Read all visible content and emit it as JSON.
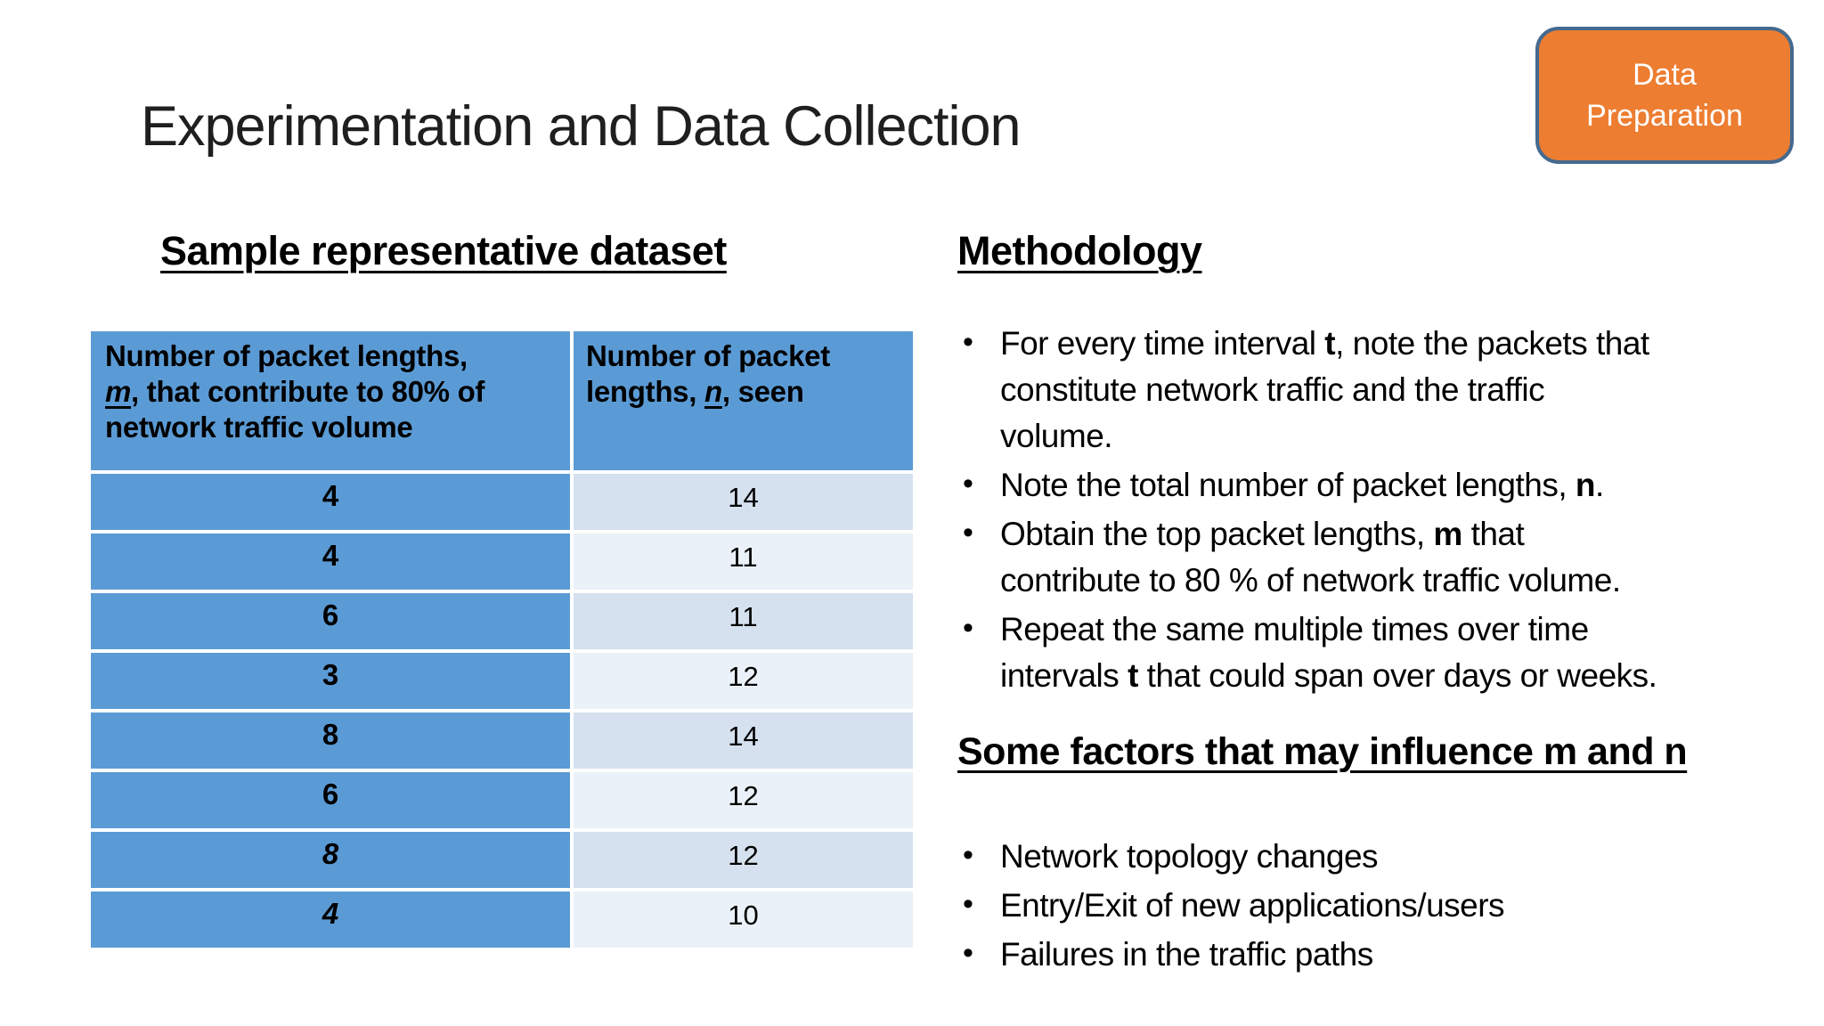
{
  "colors": {
    "accent-blue": "#5B9BD5",
    "band-dark": "#D6E1EF",
    "band-light": "#EBF1F8",
    "badge-bg": "#ED7D31",
    "badge-border": "#456A8F",
    "text": "#000000",
    "title-text": "#1F1F1F"
  },
  "title": "Experimentation and Data Collection",
  "badge": {
    "text": "Data\nPreparation"
  },
  "dataset": {
    "heading": "Sample representative dataset",
    "table": {
      "header_m_segments": [
        {
          "t": "Number of packet lengths,\n"
        },
        {
          "t": "m",
          "i": true,
          "u": true
        },
        {
          "t": ", that contribute to 80% of\nnetwork traffic volume"
        }
      ],
      "header_n_segments": [
        {
          "t": "Number of packet\nlengths, "
        },
        {
          "t": "n",
          "i": true,
          "u": true
        },
        {
          "t": ", seen"
        }
      ],
      "rows": [
        {
          "m": "4",
          "n": "14"
        },
        {
          "m": "4",
          "n": "11"
        },
        {
          "m": "6",
          "n": "11"
        },
        {
          "m": "3",
          "n": "12"
        },
        {
          "m": "8",
          "n": "14"
        },
        {
          "m": "6",
          "n": "12"
        },
        {
          "m": "8",
          "n": "12",
          "italic": true
        },
        {
          "m": "4",
          "n": "10",
          "italic": true
        }
      ]
    }
  },
  "methodology": {
    "heading": "Methodology",
    "bullets": [
      [
        {
          "t": "For every time interval "
        },
        {
          "t": "t",
          "b": true
        },
        {
          "t": ", note the packets that\nconstitute network traffic and the traffic\nvolume."
        }
      ],
      [
        {
          "t": "Note the total number of packet lengths, "
        },
        {
          "t": "n",
          "b": true
        },
        {
          "t": "."
        }
      ],
      [
        {
          "t": "Obtain the top packet lengths, "
        },
        {
          "t": "m",
          "b": true
        },
        {
          "t": " that\ncontribute to 80 % of network traffic volume."
        }
      ],
      [
        {
          "t": "Repeat the same multiple times over time\nintervals "
        },
        {
          "t": "t",
          "b": true
        },
        {
          "t": " that could span over days or weeks."
        }
      ]
    ]
  },
  "factors": {
    "heading": "Some factors that may influence m and n",
    "bullets": [
      [
        {
          "t": "Network topology changes"
        }
      ],
      [
        {
          "t": "Entry/Exit of new applications/users"
        }
      ],
      [
        {
          "t": "Failures in the traffic paths"
        }
      ]
    ]
  }
}
